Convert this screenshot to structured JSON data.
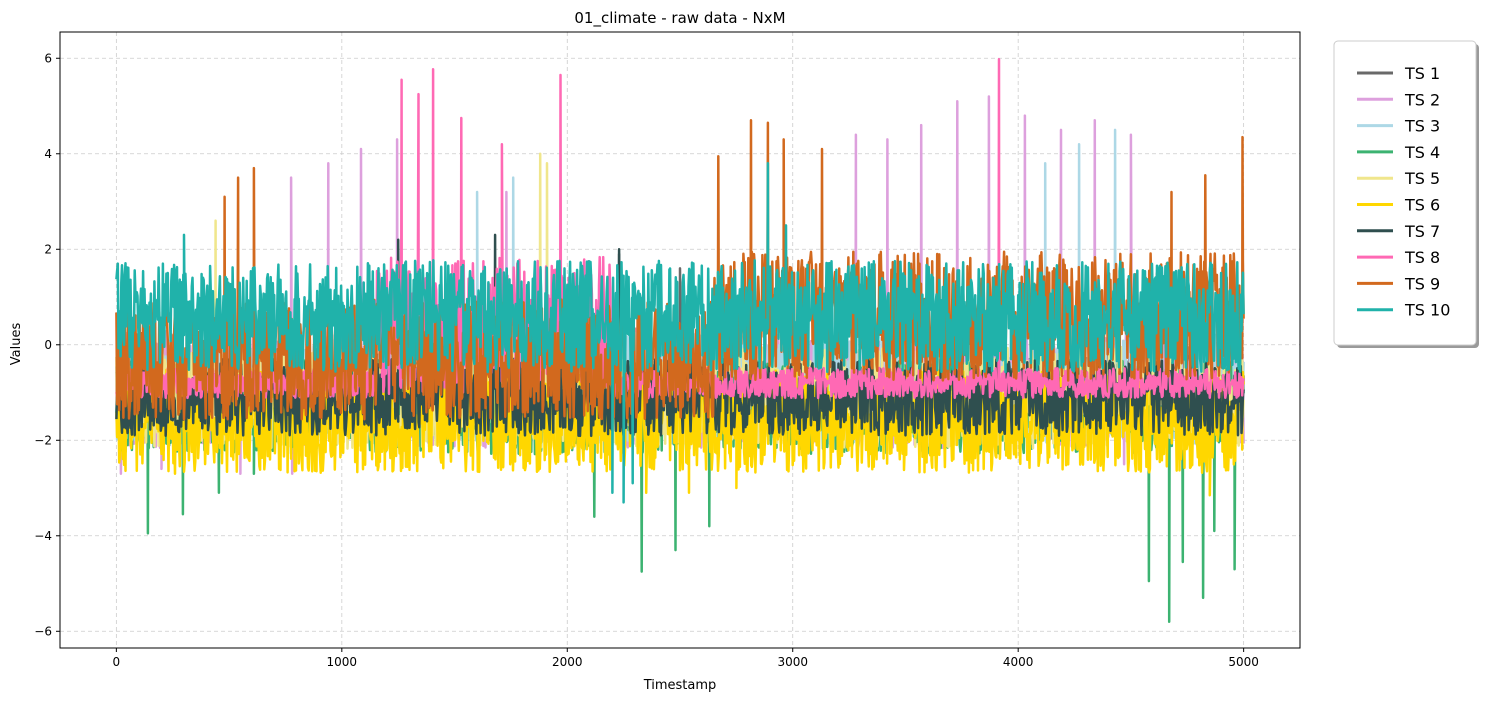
{
  "chart_data": {
    "type": "line",
    "title": "01_climate - raw data - NxM",
    "xlabel": "Timestamp",
    "ylabel": "Values",
    "xlim": [
      -250,
      5250
    ],
    "ylim": [
      -6.35,
      6.55
    ],
    "xticks": [
      0,
      1000,
      2000,
      3000,
      4000,
      5000
    ],
    "yticks": [
      -6,
      -4,
      -2,
      0,
      2,
      4,
      6
    ],
    "xtick_labels": [
      "0",
      "1000",
      "2000",
      "3000",
      "4000",
      "5000"
    ],
    "ytick_labels": [
      "−6",
      "−4",
      "−2",
      "0",
      "2",
      "4",
      "6"
    ],
    "grid": true,
    "legend_position": "outside-upper-right",
    "series": [
      {
        "name": "TS 1",
        "color": "#696969",
        "profile": {
          "baseline": -0.85,
          "spread": 0.9,
          "spikes": [
            [
              2230,
              1.9
            ],
            [
              2500,
              1.6
            ],
            [
              4100,
              1.5
            ]
          ]
        }
      },
      {
        "name": "TS 2",
        "color": "#DDA0DD",
        "profile": {
          "baseline": -0.9,
          "spread": 1.4,
          "spikes": [
            [
              775,
              3.5
            ],
            [
              940,
              3.8
            ],
            [
              1085,
              4.1
            ],
            [
              1245,
              4.3
            ],
            [
              1730,
              3.2
            ],
            [
              3280,
              4.4
            ],
            [
              3420,
              4.3
            ],
            [
              3570,
              4.6
            ],
            [
              3730,
              5.1
            ],
            [
              3870,
              5.2
            ],
            [
              4030,
              4.8
            ],
            [
              4190,
              4.5
            ],
            [
              4340,
              4.7
            ],
            [
              4500,
              4.4
            ]
          ],
          "dips": [
            [
              20,
              -2.7
            ],
            [
              200,
              -2.6
            ],
            [
              550,
              -2.7
            ],
            [
              780,
              -2.7
            ],
            [
              4470,
              -2.5
            ]
          ]
        }
      },
      {
        "name": "TS 3",
        "color": "#ADD8E6",
        "profile": {
          "baseline": -0.9,
          "spread": 1.3,
          "spikes": [
            [
              1600,
              3.2
            ],
            [
              1760,
              3.5
            ],
            [
              4120,
              3.8
            ],
            [
              4270,
              4.2
            ],
            [
              4430,
              4.5
            ]
          ]
        }
      },
      {
        "name": "TS 4",
        "color": "#3CB371",
        "profile": {
          "baseline": -1.3,
          "spread": 1.1,
          "dips": [
            [
              140,
              -3.95
            ],
            [
              295,
              -3.55
            ],
            [
              455,
              -3.1
            ],
            [
              610,
              -2.7
            ],
            [
              2120,
              -3.6
            ],
            [
              2330,
              -4.75
            ],
            [
              2480,
              -4.3
            ],
            [
              2630,
              -3.8
            ],
            [
              4580,
              -4.95
            ],
            [
              4670,
              -5.8
            ],
            [
              4730,
              -4.55
            ],
            [
              4820,
              -5.3
            ],
            [
              4870,
              -3.9
            ],
            [
              4960,
              -4.7
            ]
          ]
        }
      },
      {
        "name": "TS 5",
        "color": "#F0E68C",
        "profile": {
          "baseline": -1.1,
          "spread": 1.2,
          "spikes": [
            [
              440,
              2.6
            ],
            [
              1880,
              4.0
            ],
            [
              1910,
              3.8
            ]
          ]
        }
      },
      {
        "name": "TS 6",
        "color": "#FFD700",
        "profile": {
          "baseline": -1.6,
          "spread": 1.2,
          "dips": [
            [
              260,
              -2.7
            ],
            [
              2350,
              -3.1
            ],
            [
              2540,
              -3.1
            ],
            [
              2750,
              -3.0
            ],
            [
              4850,
              -3.15
            ]
          ]
        }
      },
      {
        "name": "TS 7",
        "color": "#2F4F4F",
        "profile": {
          "baseline": -1.1,
          "spread": 0.9,
          "spikes": [
            [
              1250,
              2.2
            ],
            [
              1680,
              2.3
            ],
            [
              2230,
              2.0
            ]
          ]
        }
      },
      {
        "name": "TS 8",
        "color": "#FF69B4",
        "profile": {
          "baseline": -0.8,
          "spread": 0.35,
          "spikes": [
            [
              1265,
              5.55
            ],
            [
              1340,
              5.25
            ],
            [
              1405,
              5.77
            ],
            [
              1530,
              4.75
            ],
            [
              1710,
              4.2
            ],
            [
              1970,
              5.65
            ],
            [
              3915,
              5.98
            ]
          ],
          "band": [
            1150,
            2200,
            1.2,
            1.6
          ]
        }
      },
      {
        "name": "TS 9",
        "color": "#D2691E",
        "profile": {
          "baseline": -0.3,
          "spread": 1.4,
          "spikes": [
            [
              480,
              3.1
            ],
            [
              540,
              3.5
            ],
            [
              610,
              3.7
            ],
            [
              2670,
              3.95
            ],
            [
              2815,
              4.7
            ],
            [
              2890,
              4.65
            ],
            [
              2960,
              4.3
            ],
            [
              3130,
              4.1
            ],
            [
              4680,
              3.2
            ],
            [
              4830,
              3.55
            ],
            [
              4995,
              4.35
            ]
          ],
          "band": [
            2650,
            5000,
            0.9,
            1.5
          ]
        }
      },
      {
        "name": "TS 10",
        "color": "#20B2AA",
        "profile": {
          "baseline": 0.6,
          "spread": 1.3,
          "dips": [
            [
              2200,
              -3.1
            ],
            [
              2250,
              -3.3
            ],
            [
              2290,
              -2.9
            ]
          ],
          "spikes": [
            [
              300,
              2.3
            ],
            [
              2890,
              3.8
            ],
            [
              2970,
              2.5
            ]
          ]
        }
      }
    ]
  }
}
